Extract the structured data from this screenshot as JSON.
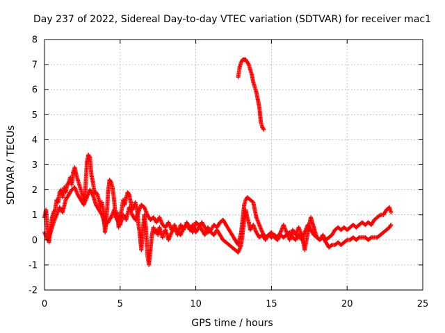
{
  "chart_data": {
    "type": "scatter",
    "title": "Day 237 of 2022, Sidereal Day-to-day VTEC variation (SDTVAR) for receiver mac1",
    "xlabel": "GPS time / hours",
    "ylabel": "SDTVAR / TECUs",
    "xlim": [
      0,
      25
    ],
    "ylim": [
      -2,
      8
    ],
    "xticks": [
      "0",
      "5",
      "10",
      "15",
      "20",
      "25"
    ],
    "yticks": [
      "-2",
      "-1",
      "0",
      "1",
      "2",
      "3",
      "4",
      "5",
      "6",
      "7",
      "8"
    ],
    "grid": true,
    "marker": "+",
    "color": "#ff0000",
    "series": [
      {
        "name": "satellite-track-a",
        "points": [
          [
            0.0,
            0.9
          ],
          [
            0.1,
            1.2
          ],
          [
            0.2,
            0.3
          ],
          [
            0.3,
            -0.1
          ],
          [
            0.4,
            0.5
          ],
          [
            0.5,
            0.9
          ],
          [
            0.6,
            1.1
          ],
          [
            0.7,
            1.2
          ],
          [
            0.8,
            1.6
          ],
          [
            0.9,
            1.5
          ],
          [
            1.0,
            1.9
          ],
          [
            1.1,
            2.0
          ],
          [
            1.2,
            1.7
          ],
          [
            1.3,
            2.1
          ],
          [
            1.4,
            1.9
          ],
          [
            1.5,
            2.2
          ],
          [
            1.6,
            2.3
          ],
          [
            1.7,
            2.5
          ],
          [
            1.8,
            2.2
          ],
          [
            1.9,
            2.7
          ],
          [
            2.0,
            2.9
          ],
          [
            2.1,
            2.6
          ],
          [
            2.2,
            2.4
          ],
          [
            2.3,
            2.2
          ],
          [
            2.4,
            2.0
          ],
          [
            2.5,
            1.8
          ],
          [
            2.6,
            1.5
          ],
          [
            2.7,
            2.0
          ],
          [
            2.8,
            3.1
          ],
          [
            2.9,
            3.4
          ],
          [
            3.0,
            3.3
          ],
          [
            3.1,
            2.6
          ],
          [
            3.2,
            2.3
          ],
          [
            3.3,
            1.9
          ],
          [
            3.4,
            1.9
          ],
          [
            3.5,
            1.8
          ],
          [
            3.6,
            1.6
          ],
          [
            3.7,
            1.3
          ],
          [
            3.8,
            1.5
          ],
          [
            3.9,
            1.1
          ],
          [
            4.0,
            0.3
          ],
          [
            4.1,
            0.8
          ],
          [
            4.2,
            1.9
          ],
          [
            4.3,
            2.4
          ],
          [
            4.4,
            2.3
          ],
          [
            4.5,
            2.1
          ],
          [
            4.6,
            1.6
          ],
          [
            4.7,
            0.9
          ],
          [
            4.8,
            1.1
          ],
          [
            4.9,
            0.5
          ],
          [
            5.0,
            0.9
          ],
          [
            5.1,
            1.2
          ],
          [
            5.2,
            1.6
          ],
          [
            5.3,
            1.4
          ],
          [
            5.4,
            1.7
          ],
          [
            5.5,
            1.9
          ],
          [
            5.6,
            1.8
          ],
          [
            5.7,
            1.5
          ],
          [
            5.8,
            1.2
          ],
          [
            5.9,
            1.3
          ],
          [
            6.0,
            1.5
          ],
          [
            6.1,
            1.3
          ],
          [
            6.2,
            0.7
          ],
          [
            6.3,
            0.2
          ],
          [
            6.4,
            -0.4
          ],
          [
            6.5,
            0.4
          ],
          [
            6.6,
            1.0
          ],
          [
            6.7,
            0.5
          ],
          [
            6.8,
            -0.6
          ],
          [
            6.9,
            -1.0
          ],
          [
            7.0,
            -0.4
          ],
          [
            7.1,
            0.2
          ],
          [
            7.2,
            0.5
          ],
          [
            7.3,
            0.3
          ],
          [
            7.4,
            0.4
          ],
          [
            7.5,
            0.2
          ],
          [
            7.6,
            0.5
          ],
          [
            7.7,
            0.3
          ],
          [
            7.8,
            0.1
          ],
          [
            7.9,
            0.3
          ],
          [
            8.0,
            0.4
          ],
          [
            8.2,
            0.0
          ],
          [
            8.4,
            0.3
          ],
          [
            8.6,
            0.5
          ],
          [
            8.8,
            0.2
          ],
          [
            9.0,
            0.6
          ],
          [
            9.2,
            0.4
          ],
          [
            9.4,
            0.7
          ],
          [
            9.6,
            0.5
          ],
          [
            9.8,
            0.3
          ],
          [
            10.0,
            0.7
          ],
          [
            10.2,
            0.6
          ],
          [
            10.4,
            0.4
          ],
          [
            10.6,
            0.2
          ],
          [
            10.8,
            0.5
          ],
          [
            11.0,
            0.3
          ],
          [
            11.2,
            0.2
          ],
          [
            11.4,
            0.4
          ],
          [
            11.6,
            0.2
          ],
          [
            11.8,
            0.0
          ],
          [
            12.0,
            -0.1
          ],
          [
            12.2,
            -0.2
          ],
          [
            12.4,
            -0.3
          ],
          [
            12.6,
            -0.4
          ],
          [
            12.8,
            -0.5
          ],
          [
            13.0,
            -0.2
          ],
          [
            13.1,
            0.3
          ],
          [
            13.2,
            0.8
          ],
          [
            13.3,
            1.2
          ],
          [
            13.4,
            0.9
          ],
          [
            13.5,
            0.7
          ],
          [
            13.6,
            0.4
          ],
          [
            13.8,
            0.6
          ],
          [
            14.0,
            0.3
          ],
          [
            14.2,
            0.1
          ],
          [
            14.4,
            0.2
          ],
          [
            14.6,
            0.0
          ],
          [
            14.8,
            0.2
          ],
          [
            15.0,
            0.1
          ],
          [
            15.2,
            0.2
          ],
          [
            15.4,
            0.1
          ],
          [
            15.6,
            0.3
          ],
          [
            15.8,
            0.6
          ],
          [
            16.0,
            0.3
          ],
          [
            16.2,
            0.0
          ],
          [
            16.4,
            0.4
          ],
          [
            16.6,
            0.2
          ],
          [
            16.8,
            0.5
          ],
          [
            17.0,
            0.2
          ],
          [
            17.2,
            -0.4
          ],
          [
            17.4,
            0.3
          ],
          [
            17.6,
            0.9
          ],
          [
            17.8,
            0.5
          ],
          [
            18.0,
            0.1
          ],
          [
            18.2,
            0.0
          ],
          [
            18.4,
            0.1
          ],
          [
            18.6,
            -0.1
          ],
          [
            18.8,
            -0.3
          ],
          [
            19.0,
            -0.2
          ],
          [
            19.2,
            -0.2
          ],
          [
            19.4,
            -0.1
          ],
          [
            19.6,
            -0.2
          ],
          [
            19.8,
            -0.1
          ],
          [
            20.0,
            0.0
          ],
          [
            20.2,
            0.0
          ],
          [
            20.4,
            0.1
          ],
          [
            20.6,
            0.0
          ],
          [
            20.8,
            0.1
          ],
          [
            21.0,
            0.1
          ],
          [
            21.2,
            0.1
          ],
          [
            21.4,
            0.0
          ],
          [
            21.6,
            0.1
          ],
          [
            21.8,
            0.1
          ],
          [
            22.0,
            0.1
          ],
          [
            22.2,
            0.2
          ],
          [
            22.4,
            0.3
          ],
          [
            22.6,
            0.4
          ],
          [
            22.8,
            0.5
          ],
          [
            22.9,
            0.6
          ]
        ]
      },
      {
        "name": "satellite-track-b",
        "points": [
          [
            0.0,
            0.3
          ],
          [
            0.2,
            0.0
          ],
          [
            0.4,
            0.3
          ],
          [
            0.6,
            0.7
          ],
          [
            0.8,
            1.0
          ],
          [
            1.0,
            1.3
          ],
          [
            1.2,
            1.1
          ],
          [
            1.4,
            1.6
          ],
          [
            1.6,
            1.8
          ],
          [
            1.8,
            2.0
          ],
          [
            2.0,
            2.1
          ],
          [
            2.2,
            1.8
          ],
          [
            2.4,
            1.6
          ],
          [
            2.6,
            1.4
          ],
          [
            2.8,
            1.7
          ],
          [
            3.0,
            2.0
          ],
          [
            3.2,
            1.8
          ],
          [
            3.4,
            1.4
          ],
          [
            3.6,
            1.2
          ],
          [
            3.8,
            1.0
          ],
          [
            4.0,
            0.6
          ],
          [
            4.2,
            0.7
          ],
          [
            4.4,
            0.9
          ],
          [
            4.6,
            1.2
          ],
          [
            4.8,
            0.8
          ],
          [
            5.0,
            0.6
          ],
          [
            5.2,
            1.0
          ],
          [
            5.4,
            0.8
          ],
          [
            5.6,
            1.3
          ],
          [
            5.8,
            1.0
          ],
          [
            6.0,
            0.8
          ],
          [
            6.2,
            1.1
          ],
          [
            6.4,
            1.4
          ],
          [
            6.6,
            1.3
          ],
          [
            6.8,
            1.0
          ],
          [
            7.0,
            0.8
          ],
          [
            7.2,
            0.9
          ],
          [
            7.4,
            0.7
          ],
          [
            7.6,
            0.9
          ],
          [
            7.8,
            0.6
          ],
          [
            8.0,
            0.5
          ],
          [
            8.2,
            0.7
          ],
          [
            8.4,
            0.4
          ],
          [
            8.6,
            0.6
          ],
          [
            8.8,
            0.3
          ],
          [
            9.0,
            0.2
          ],
          [
            9.2,
            0.5
          ],
          [
            9.4,
            0.6
          ],
          [
            9.6,
            0.4
          ],
          [
            9.8,
            0.6
          ],
          [
            10.0,
            0.3
          ],
          [
            10.2,
            0.5
          ],
          [
            10.4,
            0.7
          ],
          [
            10.6,
            0.5
          ],
          [
            10.8,
            0.3
          ],
          [
            11.0,
            0.4
          ],
          [
            11.2,
            0.6
          ],
          [
            11.4,
            0.5
          ],
          [
            11.6,
            0.7
          ],
          [
            11.8,
            0.8
          ],
          [
            12.0,
            0.6
          ],
          [
            12.2,
            0.4
          ],
          [
            12.4,
            0.2
          ],
          [
            12.6,
            0.0
          ],
          [
            12.8,
            -0.2
          ],
          [
            13.0,
            0.3
          ],
          [
            13.2,
            1.4
          ],
          [
            13.3,
            1.6
          ],
          [
            13.4,
            1.7
          ],
          [
            13.6,
            1.6
          ],
          [
            13.8,
            1.5
          ],
          [
            14.0,
            0.9
          ],
          [
            14.2,
            0.6
          ],
          [
            14.4,
            0.3
          ],
          [
            14.6,
            0.1
          ],
          [
            14.8,
            0.2
          ],
          [
            15.0,
            0.3
          ],
          [
            15.2,
            0.1
          ],
          [
            15.4,
            0.0
          ],
          [
            15.6,
            0.2
          ],
          [
            15.8,
            0.1
          ],
          [
            16.0,
            0.2
          ],
          [
            16.2,
            0.3
          ],
          [
            16.4,
            0.1
          ],
          [
            16.6,
            0.0
          ],
          [
            16.8,
            0.2
          ],
          [
            17.0,
            0.0
          ],
          [
            17.2,
            0.3
          ],
          [
            17.4,
            0.6
          ],
          [
            17.6,
            0.4
          ],
          [
            17.8,
            0.2
          ],
          [
            18.0,
            0.1
          ],
          [
            18.2,
            0.0
          ],
          [
            18.4,
            0.2
          ],
          [
            18.6,
            0.0
          ],
          [
            18.8,
            0.1
          ],
          [
            19.0,
            0.2
          ],
          [
            19.2,
            0.4
          ],
          [
            19.4,
            0.5
          ],
          [
            19.6,
            0.4
          ],
          [
            19.8,
            0.5
          ],
          [
            20.0,
            0.4
          ],
          [
            20.2,
            0.5
          ],
          [
            20.4,
            0.6
          ],
          [
            20.6,
            0.5
          ],
          [
            20.8,
            0.6
          ],
          [
            21.0,
            0.7
          ],
          [
            21.2,
            0.6
          ],
          [
            21.4,
            0.7
          ],
          [
            21.6,
            0.6
          ],
          [
            21.8,
            0.8
          ],
          [
            22.0,
            0.9
          ],
          [
            22.2,
            1.0
          ],
          [
            22.4,
            1.0
          ],
          [
            22.6,
            1.2
          ],
          [
            22.8,
            1.3
          ],
          [
            22.9,
            1.1
          ]
        ]
      },
      {
        "name": "satellite-track-c",
        "points": [
          [
            12.8,
            6.5
          ],
          [
            12.9,
            6.9
          ],
          [
            13.0,
            7.1
          ],
          [
            13.1,
            7.2
          ],
          [
            13.2,
            7.2
          ],
          [
            13.3,
            7.2
          ],
          [
            13.4,
            7.1
          ],
          [
            13.5,
            7.0
          ],
          [
            13.6,
            6.8
          ],
          [
            13.7,
            6.6
          ],
          [
            13.8,
            6.3
          ],
          [
            13.9,
            6.1
          ],
          [
            14.0,
            5.9
          ],
          [
            14.1,
            5.6
          ],
          [
            14.2,
            5.3
          ],
          [
            14.3,
            4.7
          ],
          [
            14.4,
            4.5
          ],
          [
            14.5,
            4.4
          ]
        ]
      }
    ]
  }
}
